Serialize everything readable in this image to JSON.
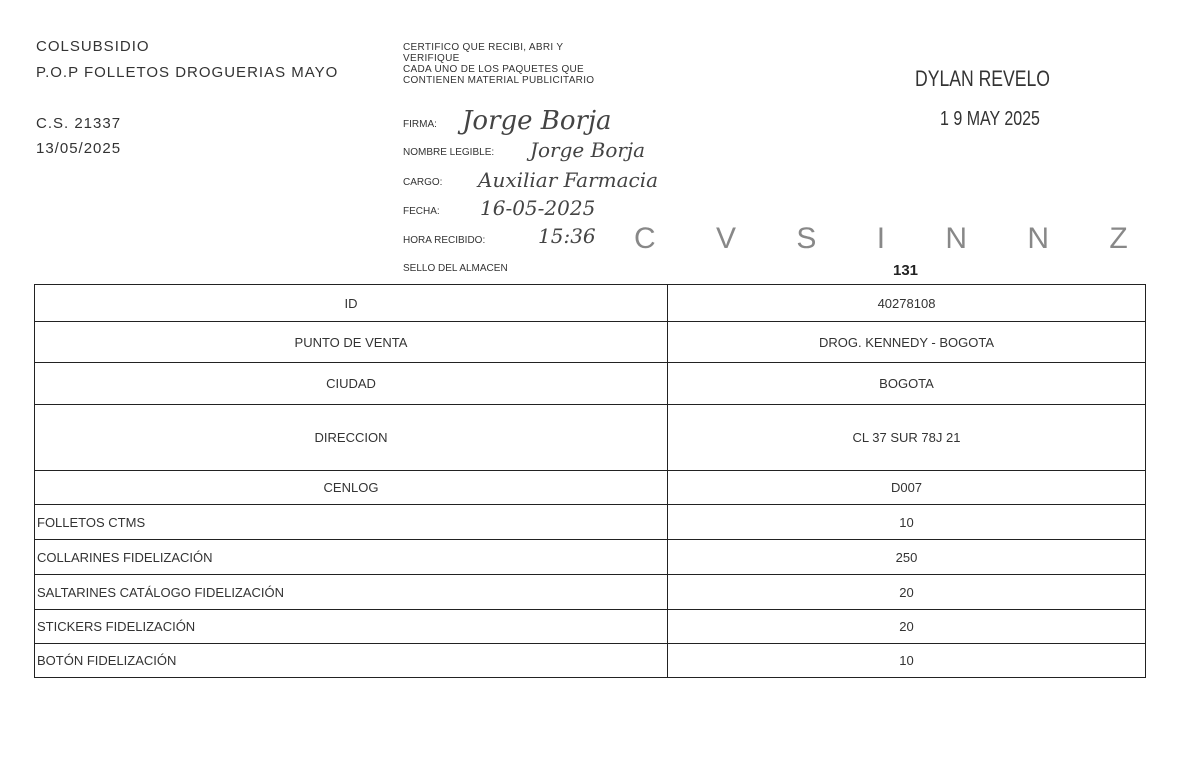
{
  "header": {
    "company": "COLSUBSIDIO",
    "campaign": "P.O.P FOLLETOS DROGUERIAS MAYO",
    "cs": "C.S. 21337",
    "date": "13/05/2025"
  },
  "certificate": {
    "lines": [
      "CERTIFICO QUE RECIBI, ABRI Y",
      "VERIFIQUE",
      "CADA UNO DE LOS PAQUETES QUE",
      "CONTIENEN MATERIAL PUBLICITARIO"
    ],
    "fields": [
      {
        "label": "FIRMA:",
        "value": "Jorge Borja"
      },
      {
        "label": "NOMBRE LEGIBLE:",
        "value": "Jorge Borja"
      },
      {
        "label": "CARGO:",
        "value": "Auxiliar Farmacia"
      },
      {
        "label": "FECHA:",
        "value": "16-05-2025"
      },
      {
        "label": "HORA RECIBIDO:",
        "value": "15:36"
      },
      {
        "label": "SELLO DEL ALMACEN",
        "value": ""
      }
    ],
    "stamp_text": "C V S I N N Z"
  },
  "received_stamp": {
    "name": "DYLAN REVELO",
    "date": "1 9 MAY 2025"
  },
  "page_number": "131",
  "table": {
    "info_rows": [
      {
        "label": "ID",
        "value": "40278108"
      },
      {
        "label": "PUNTO DE VENTA",
        "value": "DROG. KENNEDY - BOGOTA"
      },
      {
        "label": "CIUDAD",
        "value": "BOGOTA"
      },
      {
        "label": "DIRECCION",
        "value": "CL 37 SUR 78J 21"
      },
      {
        "label": "CENLOG",
        "value": "D007"
      }
    ],
    "item_rows": [
      {
        "label": "FOLLETOS CTMS",
        "value": "10"
      },
      {
        "label": "COLLARINES FIDELIZACIÓN",
        "value": "250"
      },
      {
        "label": "SALTARINES CATÁLOGO FIDELIZACIÓN",
        "value": "20"
      },
      {
        "label": "STICKERS FIDELIZACIÓN",
        "value": "20"
      },
      {
        "label": "BOTÓN FIDELIZACIÓN",
        "value": "10"
      }
    ]
  }
}
